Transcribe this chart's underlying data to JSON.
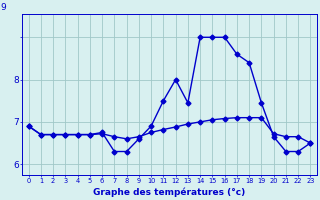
{
  "xlabel": "Graphe des températures (°c)",
  "hours": [
    0,
    1,
    2,
    3,
    4,
    5,
    6,
    7,
    8,
    9,
    10,
    11,
    12,
    13,
    14,
    15,
    16,
    17,
    18,
    19,
    20,
    21,
    22,
    23
  ],
  "actual_temps": [
    6.9,
    6.7,
    6.7,
    6.7,
    6.7,
    6.7,
    6.75,
    6.3,
    6.3,
    6.6,
    6.9,
    7.5,
    8.0,
    7.45,
    9.0,
    9.0,
    9.0,
    8.6,
    8.4,
    7.45,
    6.65,
    6.3,
    6.3,
    6.5
  ],
  "ref_temps": [
    6.9,
    6.7,
    6.7,
    6.7,
    6.7,
    6.7,
    6.72,
    6.65,
    6.6,
    6.65,
    6.75,
    6.82,
    6.88,
    6.95,
    7.0,
    7.05,
    7.08,
    7.1,
    7.1,
    7.1,
    6.72,
    6.65,
    6.65,
    6.5
  ],
  "line_color": "#0000cc",
  "bg_color": "#d8f0f0",
  "grid_color": "#a0c8c8",
  "ylim_min": 5.75,
  "ylim_max": 9.55,
  "ytick_vals": [
    6,
    7,
    8,
    9
  ],
  "ytick_labels": [
    "6",
    "7",
    "8",
    "9"
  ],
  "marker_size": 2.5,
  "line_width": 1.0
}
